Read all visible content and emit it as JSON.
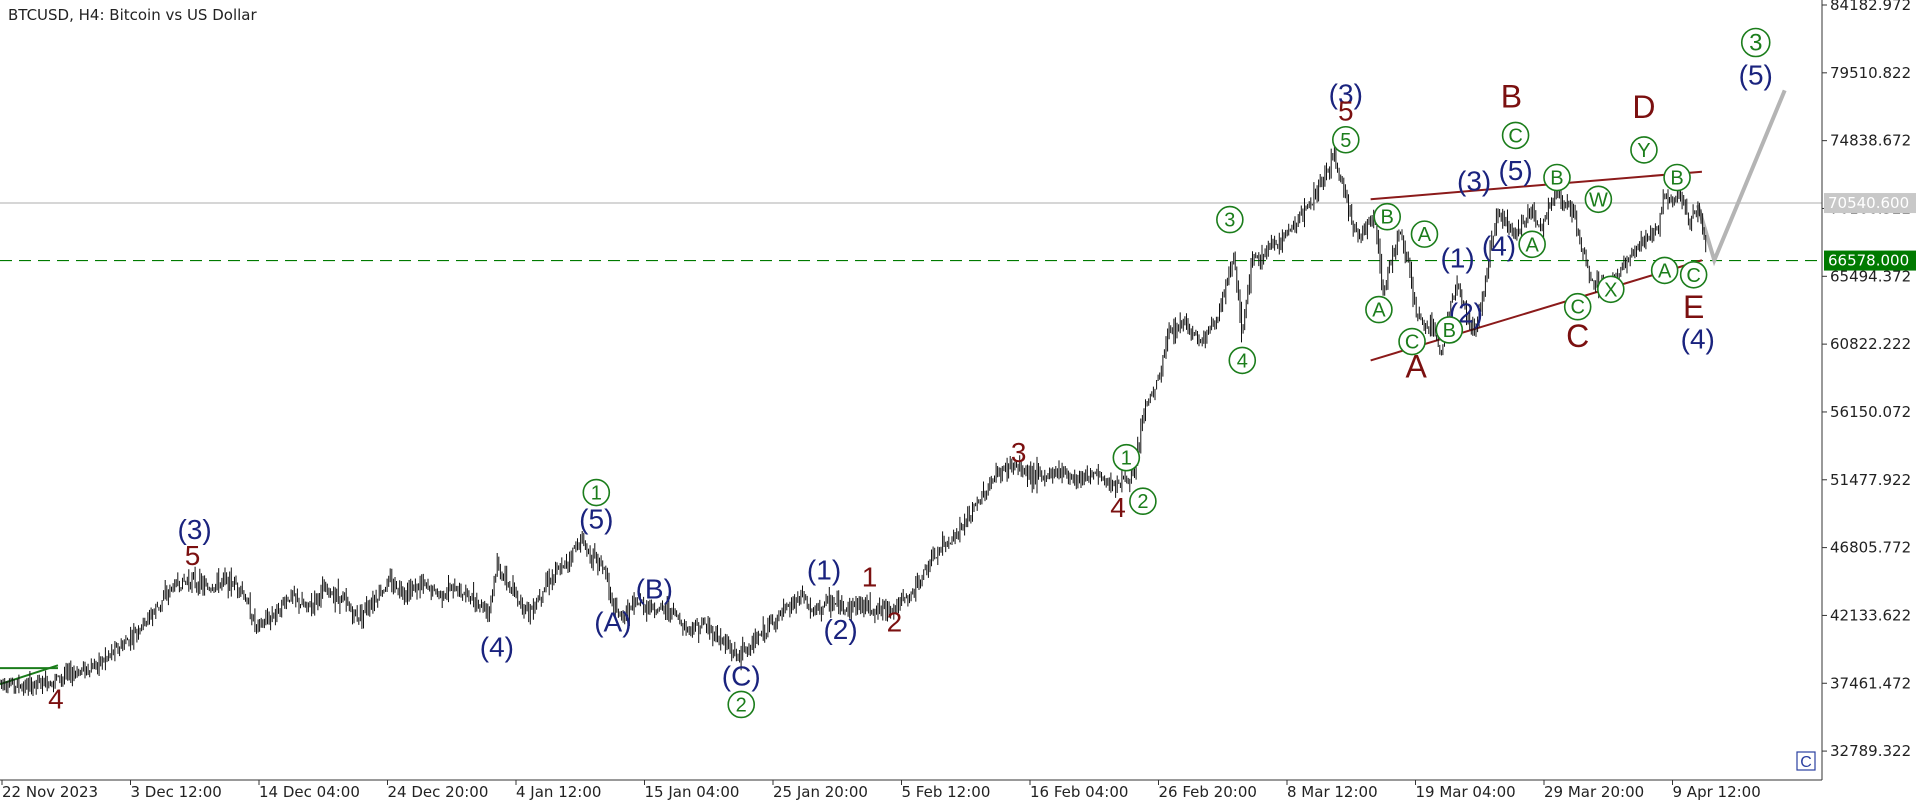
{
  "window": {
    "title": "BTCUSD, H4:  Bitcoin vs US Dollar"
  },
  "chart_data": {
    "type": "line",
    "symbol": "BTCUSD",
    "timeframe": "H4",
    "ylim": [
      30453.0,
      84182.972
    ],
    "y_ticks": [
      "84182.972",
      "79510.822",
      "74838.672",
      "70166.522",
      "65494.372",
      "60822.222",
      "56150.072",
      "51477.922",
      "46805.772",
      "42133.622",
      "37461.472",
      "32789.322"
    ],
    "x_ticks": [
      "22 Nov 2023",
      "3 Dec 12:00",
      "14 Dec 04:00",
      "24 Dec 20:00",
      "4 Jan 12:00",
      "15 Jan 04:00",
      "25 Jan 20:00",
      "5 Feb 12:00",
      "16 Feb 04:00",
      "26 Feb 20:00",
      "8 Mar 12:00",
      "19 Mar 04:00",
      "29 Mar 20:00",
      "9 Apr 12:00"
    ],
    "price_lines": {
      "current": {
        "value": 70540.6,
        "label": "70540.600",
        "color": "#c8c8c8"
      },
      "level": {
        "value": 66578.0,
        "label": "66578.000",
        "color": "#007a00"
      }
    },
    "colors": {
      "candles": "#111111",
      "wave_green": "#1b7d1b",
      "wave_navy": "#1a237e",
      "wave_red": "#7b1010",
      "trendline": "#8b1a1a",
      "projection": "#b4b4b4"
    },
    "price_path": [
      [
        0,
        37600
      ],
      [
        6,
        37200
      ],
      [
        12,
        37600
      ],
      [
        18,
        38200
      ],
      [
        24,
        38800
      ],
      [
        30,
        40200
      ],
      [
        36,
        42000
      ],
      [
        42,
        44200
      ],
      [
        46,
        44600
      ],
      [
        50,
        44000
      ],
      [
        54,
        44500
      ],
      [
        58,
        44200
      ],
      [
        62,
        41200
      ],
      [
        66,
        42200
      ],
      [
        70,
        43500
      ],
      [
        74,
        42600
      ],
      [
        78,
        43800
      ],
      [
        82,
        43500
      ],
      [
        86,
        42000
      ],
      [
        90,
        43200
      ],
      [
        94,
        44400
      ],
      [
        98,
        43800
      ],
      [
        102,
        44200
      ],
      [
        106,
        43600
      ],
      [
        110,
        44000
      ],
      [
        114,
        43300
      ],
      [
        118,
        42500
      ],
      [
        120,
        45600
      ],
      [
        124,
        43600
      ],
      [
        128,
        42400
      ],
      [
        132,
        44500
      ],
      [
        136,
        45400
      ],
      [
        140,
        47400
      ],
      [
        143,
        46200
      ],
      [
        146,
        45400
      ],
      [
        148,
        42500
      ],
      [
        150,
        42000
      ],
      [
        154,
        43000
      ],
      [
        158,
        42600
      ],
      [
        162,
        42500
      ],
      [
        166,
        41200
      ],
      [
        170,
        41500
      ],
      [
        174,
        40500
      ],
      [
        178,
        39300
      ],
      [
        182,
        40200
      ],
      [
        186,
        41500
      ],
      [
        190,
        42500
      ],
      [
        194,
        43500
      ],
      [
        196,
        42300
      ],
      [
        200,
        43000
      ],
      [
        204,
        42700
      ],
      [
        208,
        42900
      ],
      [
        212,
        42500
      ],
      [
        216,
        42700
      ],
      [
        220,
        43500
      ],
      [
        224,
        45500
      ],
      [
        228,
        47000
      ],
      [
        232,
        48000
      ],
      [
        236,
        49800
      ],
      [
        240,
        51600
      ],
      [
        244,
        52500
      ],
      [
        248,
        52000
      ],
      [
        252,
        51600
      ],
      [
        256,
        52200
      ],
      [
        260,
        51600
      ],
      [
        264,
        51900
      ],
      [
        268,
        51200
      ],
      [
        272,
        51500
      ],
      [
        274,
        51700
      ],
      [
        276,
        56000
      ],
      [
        280,
        58500
      ],
      [
        282,
        61500
      ],
      [
        286,
        62400
      ],
      [
        290,
        61000
      ],
      [
        294,
        62600
      ],
      [
        296,
        64600
      ],
      [
        298,
        66800
      ],
      [
        300,
        61500
      ],
      [
        302,
        66200
      ],
      [
        306,
        67200
      ],
      [
        310,
        68200
      ],
      [
        314,
        69600
      ],
      [
        318,
        71200
      ],
      [
        320,
        72600
      ],
      [
        322,
        73600
      ],
      [
        324,
        72000
      ],
      [
        326,
        70000
      ],
      [
        328,
        68000
      ],
      [
        332,
        69800
      ],
      [
        334,
        64300
      ],
      [
        336,
        66600
      ],
      [
        338,
        68700
      ],
      [
        340,
        66600
      ],
      [
        342,
        62700
      ],
      [
        346,
        61700
      ],
      [
        348,
        60400
      ],
      [
        350,
        63200
      ],
      [
        352,
        65000
      ],
      [
        354,
        63000
      ],
      [
        356,
        61600
      ],
      [
        358,
        63800
      ],
      [
        360,
        68000
      ],
      [
        362,
        69900
      ],
      [
        364,
        69200
      ],
      [
        366,
        68200
      ],
      [
        368,
        69200
      ],
      [
        370,
        70200
      ],
      [
        372,
        68700
      ],
      [
        374,
        70300
      ],
      [
        376,
        71100
      ],
      [
        380,
        69800
      ],
      [
        384,
        65200
      ],
      [
        388,
        64800
      ],
      [
        392,
        66200
      ],
      [
        396,
        67600
      ],
      [
        400,
        68500
      ],
      [
        402,
        70900
      ],
      [
        406,
        71000
      ],
      [
        408,
        69200
      ],
      [
        410,
        70200
      ],
      [
        412,
        67800
      ]
    ],
    "trendlines": [
      {
        "from": [
          331,
          70800
        ],
        "to": [
          411,
          72700
        ]
      },
      {
        "from": [
          331,
          59700
        ],
        "to": [
          411,
          66600
        ]
      },
      {
        "from": [
          0,
          37400
        ],
        "to": [
          14,
          38700
        ]
      },
      {
        "from": [
          0,
          38500
        ],
        "to": [
          14,
          38500
        ]
      }
    ],
    "projection": [
      [
        410,
        70400
      ],
      [
        414,
        66600
      ],
      [
        431,
        78300
      ]
    ],
    "wave_labels": [
      {
        "text": "4",
        "x": 13.5,
        "y": 36400,
        "color": "red",
        "style": "plain"
      },
      {
        "text": "(3)",
        "x": 47,
        "y": 48100,
        "color": "navy",
        "style": "plain"
      },
      {
        "text": "5",
        "x": 46.5,
        "y": 46300,
        "color": "red",
        "style": "plain"
      },
      {
        "text": "(4)",
        "x": 120,
        "y": 40000,
        "color": "navy",
        "style": "plain"
      },
      {
        "text": "1",
        "x": 144,
        "y": 50600,
        "color": "green",
        "style": "circle"
      },
      {
        "text": "(5)",
        "x": 144,
        "y": 48800,
        "color": "navy",
        "style": "plain"
      },
      {
        "text": "(A)",
        "x": 148,
        "y": 41700,
        "color": "navy",
        "style": "plain"
      },
      {
        "text": "(B)",
        "x": 158,
        "y": 44000,
        "color": "navy",
        "style": "plain"
      },
      {
        "text": "(C)",
        "x": 179,
        "y": 38000,
        "color": "navy",
        "style": "plain"
      },
      {
        "text": "2",
        "x": 179,
        "y": 36000,
        "color": "green",
        "style": "circle"
      },
      {
        "text": "(1)",
        "x": 199,
        "y": 45300,
        "color": "navy",
        "style": "plain"
      },
      {
        "text": "1",
        "x": 210,
        "y": 44800,
        "color": "red",
        "style": "plain"
      },
      {
        "text": "(2)",
        "x": 203,
        "y": 41200,
        "color": "navy",
        "style": "plain"
      },
      {
        "text": "2",
        "x": 216,
        "y": 41700,
        "color": "red",
        "style": "plain"
      },
      {
        "text": "3",
        "x": 246,
        "y": 53400,
        "color": "red",
        "style": "plain"
      },
      {
        "text": "4",
        "x": 270,
        "y": 49600,
        "color": "red",
        "style": "plain"
      },
      {
        "text": "1",
        "x": 272,
        "y": 53000,
        "color": "green",
        "style": "circle"
      },
      {
        "text": "2",
        "x": 276,
        "y": 50000,
        "color": "green",
        "style": "circle"
      },
      {
        "text": "3",
        "x": 297,
        "y": 69400,
        "color": "green",
        "style": "circle"
      },
      {
        "text": "4",
        "x": 300,
        "y": 59700,
        "color": "green",
        "style": "circle"
      },
      {
        "text": "(3)",
        "x": 325,
        "y": 78100,
        "color": "navy",
        "style": "plain"
      },
      {
        "text": "5",
        "x": 325,
        "y": 76900,
        "color": "red",
        "style": "plain"
      },
      {
        "text": "5",
        "x": 325,
        "y": 74900,
        "color": "green",
        "style": "circle"
      },
      {
        "text": "B",
        "x": 335,
        "y": 69600,
        "color": "green",
        "style": "circle"
      },
      {
        "text": "A",
        "x": 333,
        "y": 63200,
        "color": "green",
        "style": "circle"
      },
      {
        "text": "A",
        "x": 344,
        "y": 68400,
        "color": "green",
        "style": "circle"
      },
      {
        "text": "C",
        "x": 341,
        "y": 61000,
        "color": "green",
        "style": "circle"
      },
      {
        "text": "A",
        "x": 342,
        "y": 59200,
        "color": "red",
        "style": "plain"
      },
      {
        "text": "(1)",
        "x": 352,
        "y": 66800,
        "color": "navy",
        "style": "plain"
      },
      {
        "text": "(2)",
        "x": 354,
        "y": 63000,
        "color": "navy",
        "style": "plain"
      },
      {
        "text": "B",
        "x": 350,
        "y": 61800,
        "color": "green",
        "style": "circle"
      },
      {
        "text": "(3)",
        "x": 356,
        "y": 72100,
        "color": "navy",
        "style": "plain"
      },
      {
        "text": "(5)",
        "x": 366,
        "y": 72800,
        "color": "navy",
        "style": "plain"
      },
      {
        "text": "C",
        "x": 366,
        "y": 75200,
        "color": "green",
        "style": "circle"
      },
      {
        "text": "B",
        "x": 365,
        "y": 77800,
        "color": "red",
        "style": "plain"
      },
      {
        "text": "(4)",
        "x": 362,
        "y": 67600,
        "color": "navy",
        "style": "plain"
      },
      {
        "text": "A",
        "x": 370,
        "y": 67700,
        "color": "green",
        "style": "circle"
      },
      {
        "text": "B",
        "x": 376,
        "y": 72300,
        "color": "green",
        "style": "circle"
      },
      {
        "text": "W",
        "x": 386,
        "y": 70800,
        "color": "green",
        "style": "circle"
      },
      {
        "text": "C",
        "x": 381,
        "y": 63400,
        "color": "green",
        "style": "circle"
      },
      {
        "text": "C",
        "x": 381,
        "y": 61300,
        "color": "red",
        "style": "plain"
      },
      {
        "text": "X",
        "x": 389,
        "y": 64600,
        "color": "green",
        "style": "circle"
      },
      {
        "text": "Y",
        "x": 397,
        "y": 74200,
        "color": "green",
        "style": "circle"
      },
      {
        "text": "D",
        "x": 397,
        "y": 77100,
        "color": "red",
        "style": "plain"
      },
      {
        "text": "B",
        "x": 405,
        "y": 72300,
        "color": "green",
        "style": "circle"
      },
      {
        "text": "A",
        "x": 402,
        "y": 65900,
        "color": "green",
        "style": "circle"
      },
      {
        "text": "C",
        "x": 409,
        "y": 65600,
        "color": "green",
        "style": "circle"
      },
      {
        "text": "E",
        "x": 409,
        "y": 63300,
        "color": "red",
        "style": "plain"
      },
      {
        "text": "(4)",
        "x": 410,
        "y": 61200,
        "color": "navy",
        "style": "plain"
      },
      {
        "text": "3",
        "x": 424,
        "y": 81600,
        "color": "green",
        "style": "circle"
      },
      {
        "text": "(5)",
        "x": 424,
        "y": 79400,
        "color": "navy",
        "style": "plain"
      }
    ],
    "corner_marker": "C"
  }
}
